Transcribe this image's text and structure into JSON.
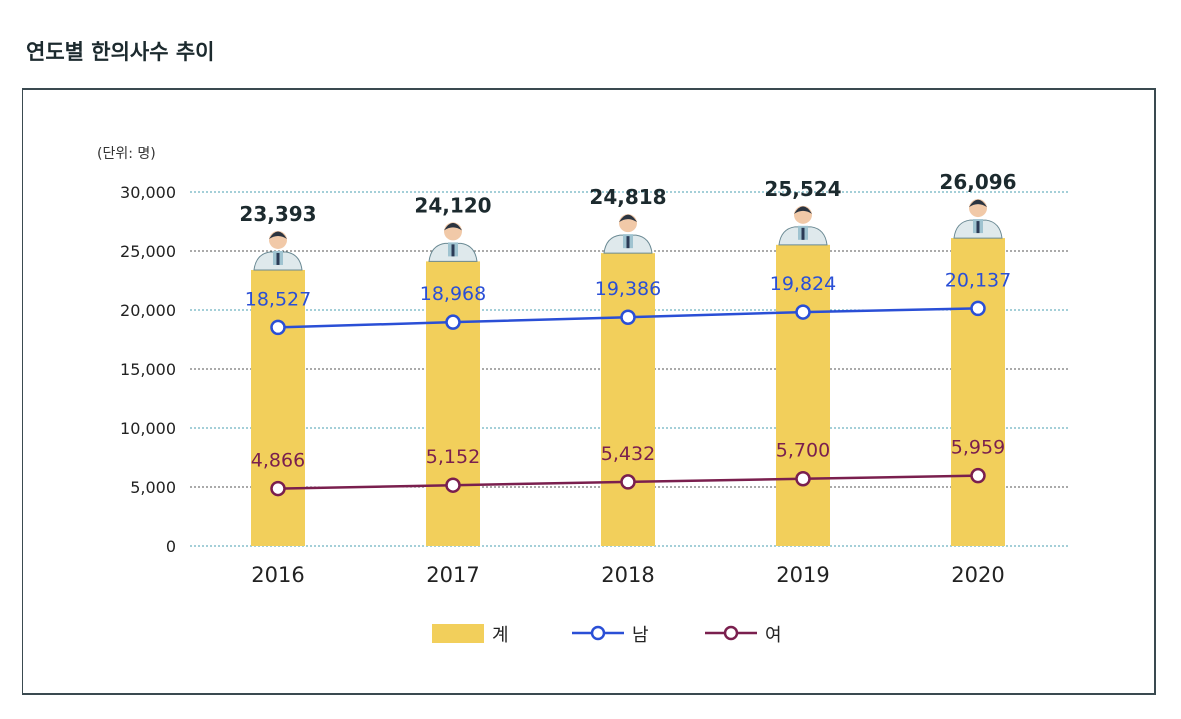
{
  "title": "연도별 한의사수 추이",
  "chart_data": {
    "type": "bar",
    "title": "연도별 한의사수 추이",
    "unit_label": "(단위: 명)",
    "categories": [
      "2016",
      "2017",
      "2018",
      "2019",
      "2020"
    ],
    "ylim": [
      0,
      30000
    ],
    "yticks": [
      "0",
      "5,000",
      "10,000",
      "15,000",
      "20,000",
      "25,000",
      "30,000"
    ],
    "grid": true,
    "legend_position": "bottom",
    "series": [
      {
        "name": "계",
        "kind": "bar",
        "color": "#f2cf5b",
        "values": [
          23393,
          24120,
          24818,
          25524,
          26096
        ],
        "labels": [
          "23,393",
          "24,120",
          "24,818",
          "25,524",
          "26,096"
        ]
      },
      {
        "name": "남",
        "kind": "line",
        "color": "#2a4fd6",
        "values": [
          18527,
          18968,
          19386,
          19824,
          20137
        ],
        "labels": [
          "18,527",
          "18,968",
          "19,386",
          "19,824",
          "20,137"
        ]
      },
      {
        "name": "여",
        "kind": "line",
        "color": "#7a1f4e",
        "values": [
          4866,
          5152,
          5432,
          5700,
          5959
        ],
        "labels": [
          "4,866",
          "5,152",
          "5,432",
          "5,700",
          "5,959"
        ]
      }
    ]
  }
}
